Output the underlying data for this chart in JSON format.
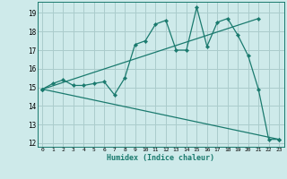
{
  "title": "",
  "xlabel": "Humidex (Indice chaleur)",
  "bg_color": "#ceeaea",
  "grid_color": "#aacccc",
  "line_color": "#1a7a6e",
  "xlim": [
    -0.5,
    23.5
  ],
  "ylim": [
    11.8,
    19.6
  ],
  "yticks": [
    12,
    13,
    14,
    15,
    16,
    17,
    18,
    19
  ],
  "xticks": [
    0,
    1,
    2,
    3,
    4,
    5,
    6,
    7,
    8,
    9,
    10,
    11,
    12,
    13,
    14,
    15,
    16,
    17,
    18,
    19,
    20,
    21,
    22,
    23
  ],
  "series1_x": [
    0,
    1,
    2,
    3,
    4,
    5,
    6,
    7,
    8,
    9,
    10,
    11,
    12,
    13,
    14,
    15,
    16,
    17,
    18,
    19,
    20,
    21,
    22,
    23
  ],
  "series1_y": [
    14.9,
    15.2,
    15.4,
    15.1,
    15.1,
    15.2,
    15.3,
    14.6,
    15.5,
    17.3,
    17.5,
    18.4,
    18.6,
    17.0,
    17.0,
    19.3,
    17.2,
    18.5,
    18.7,
    17.8,
    16.7,
    14.9,
    12.2,
    12.2
  ],
  "series2_x": [
    0,
    21
  ],
  "series2_y": [
    14.9,
    18.7
  ],
  "series3_x": [
    0,
    23
  ],
  "series3_y": [
    14.9,
    12.2
  ],
  "marker": "D",
  "markersize": 2.2,
  "linewidth": 0.9
}
